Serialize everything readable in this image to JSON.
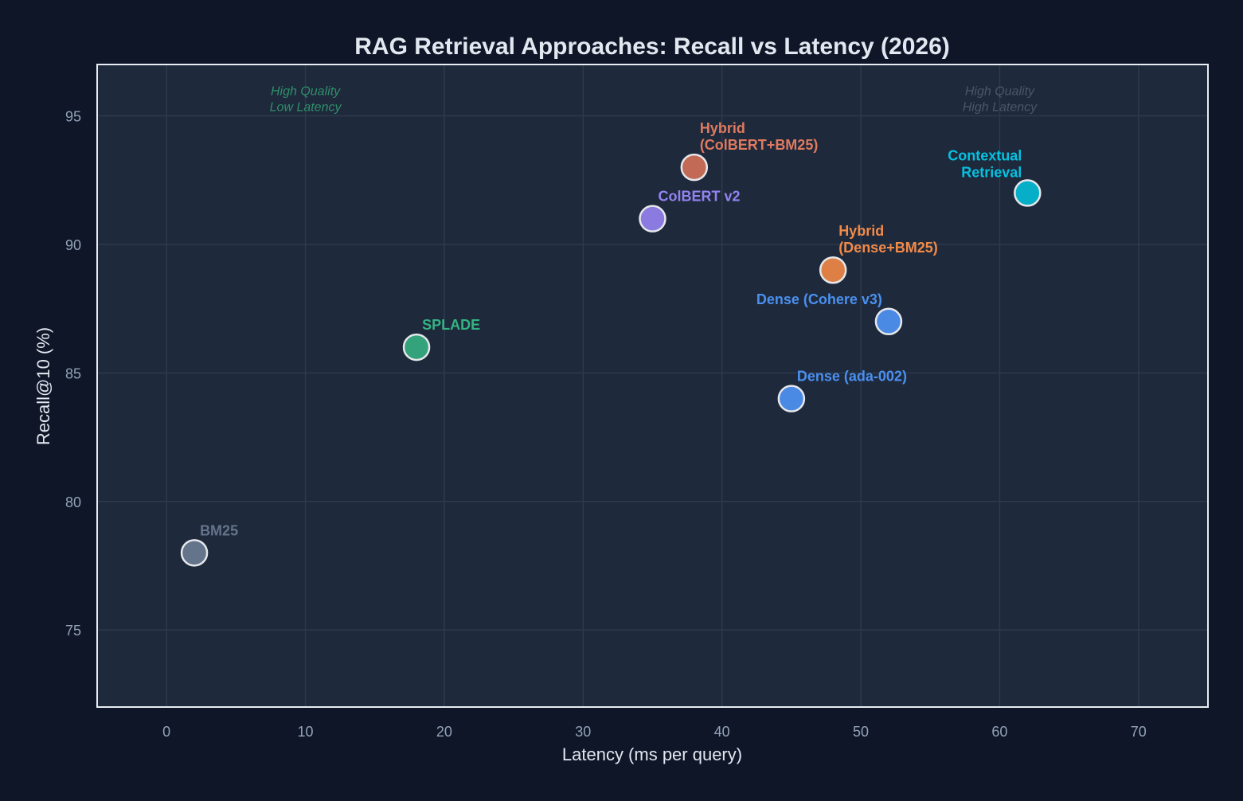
{
  "chart_data": {
    "type": "scatter",
    "title": "RAG Retrieval Approaches: Recall vs Latency (2026)",
    "xlabel": "Latency (ms per query)",
    "ylabel": "Recall@10 (%)",
    "xlim": [
      -5,
      75
    ],
    "ylim": [
      72,
      97
    ],
    "xticks": [
      0,
      10,
      20,
      30,
      40,
      50,
      60,
      70
    ],
    "yticks": [
      75,
      80,
      85,
      90,
      95
    ],
    "grid": true,
    "colors": {
      "figure_bg": "#0e1628",
      "axes_bg": "#1e293b",
      "grid": "#2d3a4d",
      "spine": "#e8edf3",
      "title": "#e2e8f0",
      "tick": "#94a3b8",
      "marker_edge": "#e5e7eb"
    },
    "points": [
      {
        "name": "BM25",
        "x": 2,
        "y": 78,
        "color": "#64748b",
        "label_color": "#64748b"
      },
      {
        "name": "SPLADE",
        "x": 18,
        "y": 86,
        "color": "#34a27a",
        "label_color": "#34b382"
      },
      {
        "name": "ColBERT v2",
        "x": 35,
        "y": 91,
        "color": "#8b7be0",
        "label_color": "#9283f0"
      },
      {
        "name": "Hybrid\n(ColBERT+BM25)",
        "x": 38,
        "y": 93,
        "color": "#c26a55",
        "label_color": "#e07a5f"
      },
      {
        "name": "Dense (ada-002)",
        "x": 45,
        "y": 84,
        "color": "#4a8ae5",
        "label_color": "#4a90f0"
      },
      {
        "name": "Hybrid\n(Dense+BM25)",
        "x": 48,
        "y": 89,
        "color": "#de7f45",
        "label_color": "#f28a48"
      },
      {
        "name": "Dense (Cohere v3)",
        "x": 52,
        "y": 87,
        "color": "#4a8ae5",
        "label_color": "#4a90f0"
      },
      {
        "name": "Contextual\nRetrieval",
        "x": 62,
        "y": 92,
        "color": "#06aec8",
        "label_color": "#06c1e0"
      }
    ],
    "annotations": [
      {
        "text": "High Quality\nLow Latency",
        "x": 10,
        "y": 95.5,
        "color": "#2f8f6a"
      },
      {
        "text": "High Quality\nHigh Latency",
        "x": 60,
        "y": 95.5,
        "color": "#4b5666"
      }
    ]
  }
}
